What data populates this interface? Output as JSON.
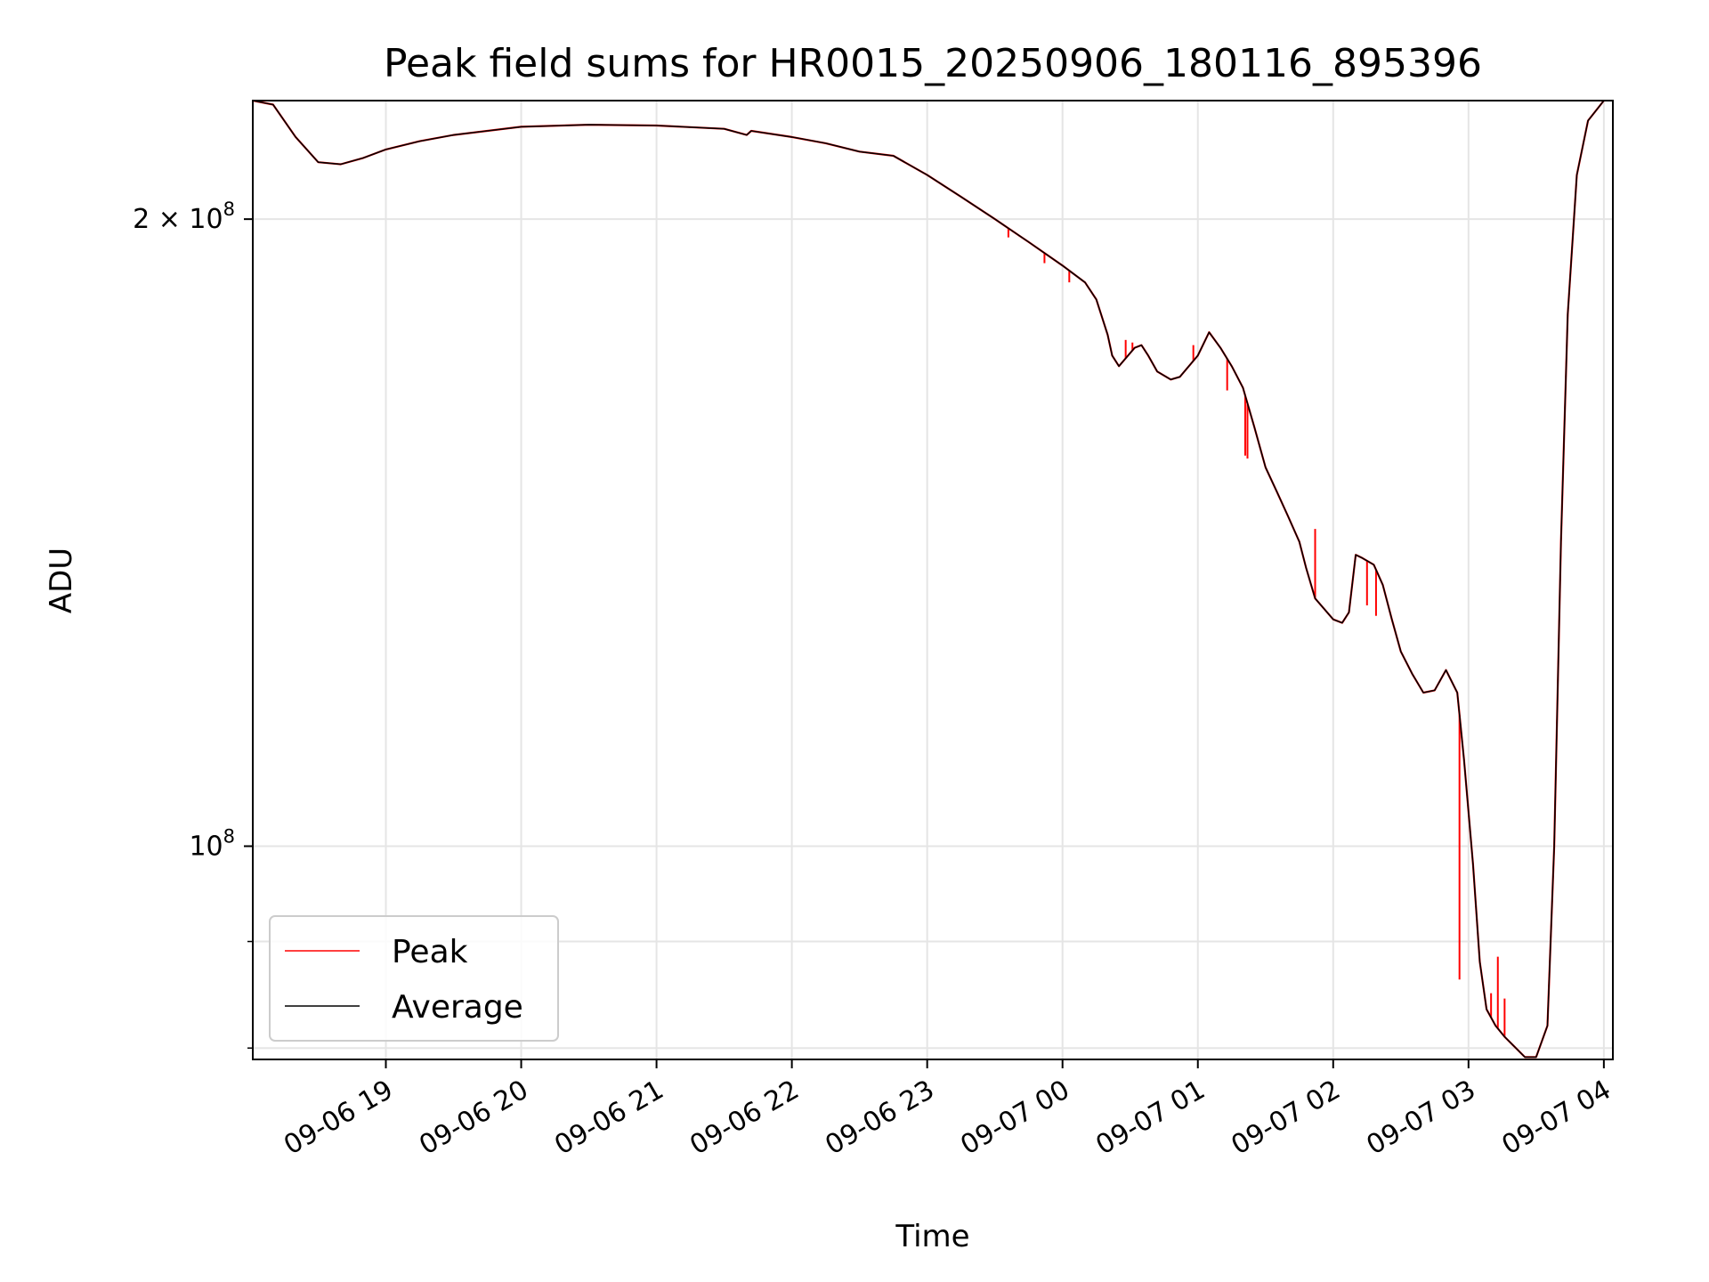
{
  "chart_data": {
    "type": "line",
    "title": "Peak field sums for HR0015_20250906_180116_895396",
    "xlabel": "Time",
    "ylabel": "ADU",
    "y_scale": "log",
    "ylim": [
      79000000,
      228000000
    ],
    "xlim": [
      "2025-09-06 18:01",
      "2025-09-07 04:04"
    ],
    "grid": true,
    "legend_position": "lower-left",
    "x_ticks": [
      {
        "label": "09-06 19",
        "time": "2025-09-06 19:00"
      },
      {
        "label": "09-06 20",
        "time": "2025-09-06 20:00"
      },
      {
        "label": "09-06 21",
        "time": "2025-09-06 21:00"
      },
      {
        "label": "09-06 22",
        "time": "2025-09-06 22:00"
      },
      {
        "label": "09-06 23",
        "time": "2025-09-06 23:00"
      },
      {
        "label": "09-07 00",
        "time": "2025-09-07 00:00"
      },
      {
        "label": "09-07 01",
        "time": "2025-09-07 01:00"
      },
      {
        "label": "09-07 02",
        "time": "2025-09-07 02:00"
      },
      {
        "label": "09-07 03",
        "time": "2025-09-07 03:00"
      },
      {
        "label": "09-07 04",
        "time": "2025-09-07 04:00"
      }
    ],
    "y_ticks": [
      {
        "value": 200000000,
        "mantissa": "2",
        "exponent": "8"
      },
      {
        "value": 100000000,
        "mantissa": "",
        "exponent": "8"
      }
    ],
    "y_minor_ticks": [
      80000000,
      90000000
    ],
    "series": [
      {
        "name": "Average",
        "color": "#000000",
        "points": [
          [
            "2025-09-06 18:01",
            228000000
          ],
          [
            "2025-09-06 18:10",
            227000000
          ],
          [
            "2025-09-06 18:20",
            219000000
          ],
          [
            "2025-09-06 18:30",
            213000000
          ],
          [
            "2025-09-06 18:40",
            212500000
          ],
          [
            "2025-09-06 18:50",
            214000000
          ],
          [
            "2025-09-06 19:00",
            216000000
          ],
          [
            "2025-09-06 19:15",
            218000000
          ],
          [
            "2025-09-06 19:30",
            219500000
          ],
          [
            "2025-09-06 19:45",
            220500000
          ],
          [
            "2025-09-06 20:00",
            221500000
          ],
          [
            "2025-09-06 20:30",
            222000000
          ],
          [
            "2025-09-06 21:00",
            221800000
          ],
          [
            "2025-09-06 21:30",
            221000000
          ],
          [
            "2025-09-06 21:40",
            219500000
          ],
          [
            "2025-09-06 21:42",
            220500000
          ],
          [
            "2025-09-06 22:00",
            219000000
          ],
          [
            "2025-09-06 22:15",
            217500000
          ],
          [
            "2025-09-06 22:30",
            215500000
          ],
          [
            "2025-09-06 22:45",
            214500000
          ],
          [
            "2025-09-06 23:00",
            210000000
          ],
          [
            "2025-09-06 23:15",
            205000000
          ],
          [
            "2025-09-06 23:30",
            200000000
          ],
          [
            "2025-09-06 23:45",
            195000000
          ],
          [
            "2025-09-07 00:00",
            190000000
          ],
          [
            "2025-09-07 00:10",
            186500000
          ],
          [
            "2025-09-07 00:15",
            183000000
          ],
          [
            "2025-09-07 00:20",
            176000000
          ],
          [
            "2025-09-07 00:22",
            172000000
          ],
          [
            "2025-09-07 00:25",
            170000000
          ],
          [
            "2025-09-07 00:32",
            173500000
          ],
          [
            "2025-09-07 00:35",
            174000000
          ],
          [
            "2025-09-07 00:38",
            172000000
          ],
          [
            "2025-09-07 00:42",
            169000000
          ],
          [
            "2025-09-07 00:48",
            167500000
          ],
          [
            "2025-09-07 00:52",
            168000000
          ],
          [
            "2025-09-07 01:00",
            172000000
          ],
          [
            "2025-09-07 01:05",
            176500000
          ],
          [
            "2025-09-07 01:10",
            173500000
          ],
          [
            "2025-09-07 01:15",
            170000000
          ],
          [
            "2025-09-07 01:20",
            166000000
          ],
          [
            "2025-09-07 01:25",
            159000000
          ],
          [
            "2025-09-07 01:30",
            152000000
          ],
          [
            "2025-09-07 01:35",
            148000000
          ],
          [
            "2025-09-07 01:40",
            144000000
          ],
          [
            "2025-09-07 01:45",
            140000000
          ],
          [
            "2025-09-07 01:48",
            136000000
          ],
          [
            "2025-09-07 01:52",
            131500000
          ],
          [
            "2025-09-07 02:00",
            128500000
          ],
          [
            "2025-09-07 02:04",
            128000000
          ],
          [
            "2025-09-07 02:07",
            129500000
          ],
          [
            "2025-09-07 02:10",
            138000000
          ],
          [
            "2025-09-07 02:13",
            137500000
          ],
          [
            "2025-09-07 02:18",
            136500000
          ],
          [
            "2025-09-07 02:22",
            133500000
          ],
          [
            "2025-09-07 02:26",
            128500000
          ],
          [
            "2025-09-07 02:30",
            124000000
          ],
          [
            "2025-09-07 02:35",
            121000000
          ],
          [
            "2025-09-07 02:40",
            118500000
          ],
          [
            "2025-09-07 02:45",
            118800000
          ],
          [
            "2025-09-07 02:50",
            121500000
          ],
          [
            "2025-09-07 02:55",
            118500000
          ],
          [
            "2025-09-07 02:58",
            110000000
          ],
          [
            "2025-09-07 03:02",
            98000000
          ],
          [
            "2025-09-07 03:05",
            88000000
          ],
          [
            "2025-09-07 03:08",
            83500000
          ],
          [
            "2025-09-07 03:12",
            82000000
          ],
          [
            "2025-09-07 03:16",
            81000000
          ],
          [
            "2025-09-07 03:20",
            80200000
          ],
          [
            "2025-09-07 03:25",
            79200000
          ],
          [
            "2025-09-07 03:30",
            79200000
          ],
          [
            "2025-09-07 03:35",
            82000000
          ],
          [
            "2025-09-07 03:38",
            100000000
          ],
          [
            "2025-09-07 03:41",
            140000000
          ],
          [
            "2025-09-07 03:44",
            180000000
          ],
          [
            "2025-09-07 03:48",
            210000000
          ],
          [
            "2025-09-07 03:53",
            223000000
          ],
          [
            "2025-09-07 04:00",
            228000000
          ]
        ]
      },
      {
        "name": "Peak",
        "color": "#ff0000",
        "spikes": [
          [
            "2025-09-06 23:36",
            196000000
          ],
          [
            "2025-09-06 23:52",
            190500000
          ],
          [
            "2025-09-07 00:03",
            186500000
          ],
          [
            "2025-09-07 00:28",
            175000000
          ],
          [
            "2025-09-07 00:31",
            174500000
          ],
          [
            "2025-09-07 00:58",
            174000000
          ],
          [
            "2025-09-07 01:13",
            165500000
          ],
          [
            "2025-09-07 01:21",
            154000000
          ],
          [
            "2025-09-07 01:22",
            153500000
          ],
          [
            "2025-09-07 01:52",
            142000000
          ],
          [
            "2025-09-07 02:15",
            130500000
          ],
          [
            "2025-09-07 02:19",
            129000000
          ],
          [
            "2025-09-07 02:56",
            86300000
          ],
          [
            "2025-09-07 03:10",
            85000000
          ],
          [
            "2025-09-07 03:13",
            88500000
          ],
          [
            "2025-09-07 03:16",
            84500000
          ]
        ]
      }
    ]
  }
}
